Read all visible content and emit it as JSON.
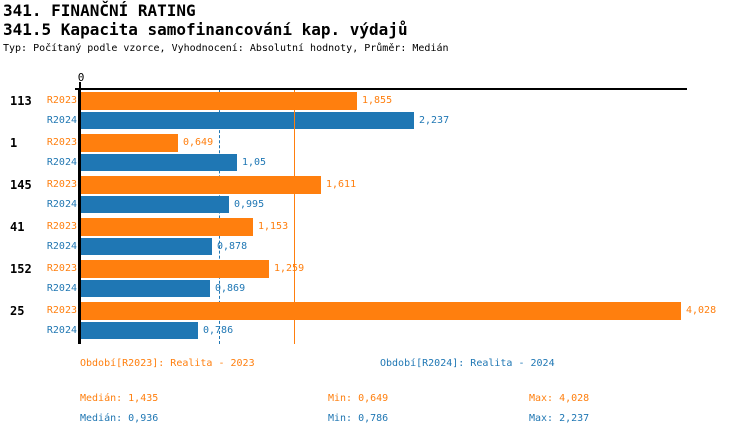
{
  "header": {
    "title": "341. FINANČNÍ RATING",
    "subtitle": "341.5 Kapacita samofinancování kap. výdajů",
    "meta": "Typ: Počítaný podle vzorce, Vyhodnocení: Absolutní hodnoty, Průměr: Medián"
  },
  "colors": {
    "r2023_orange": "#FF7F0E",
    "r2024_blue": "#1F77B4",
    "axis_black": "#000000"
  },
  "chart_data": {
    "type": "bar",
    "orientation": "horizontal",
    "title": "341.5 Kapacita samofinancování kap. výdajů",
    "x_axis": {
      "zero_label": "0",
      "xlim": [
        0,
        4.2
      ]
    },
    "categories": [
      "113",
      "1",
      "145",
      "41",
      "152",
      "25"
    ],
    "series": [
      {
        "name": "R2023",
        "color": "#FF7F0E",
        "values": [
          1.855,
          0.649,
          1.611,
          1.153,
          1.259,
          4.028
        ],
        "value_labels": [
          "1,855",
          "0,649",
          "1,611",
          "1,153",
          "1,259",
          "4,028"
        ]
      },
      {
        "name": "R2024",
        "color": "#1F77B4",
        "values": [
          2.237,
          1.05,
          0.995,
          0.878,
          0.869,
          0.786
        ],
        "value_labels": [
          "2,237",
          "1,05",
          "0,995",
          "0,878",
          "0,869",
          "0,786"
        ]
      }
    ],
    "gridlines": [
      {
        "value": 0.936,
        "color": "#1F77B4",
        "style": "dashed",
        "behind_bars": true
      },
      {
        "value": 1.435,
        "color": "#FF7F0E",
        "style": "solid",
        "behind_bars": false
      }
    ],
    "legend_position": "bottom"
  },
  "footer": {
    "legend": [
      {
        "label": "Období[R2023]: Realita - 2023",
        "color": "#FF7F0E"
      },
      {
        "label": "Období[R2024]: Realita - 2024",
        "color": "#1F77B4"
      }
    ],
    "stats": [
      {
        "color": "#FF7F0E",
        "median": "Medián: 1,435",
        "min": "Min: 0,649",
        "max": "Max: 4,028"
      },
      {
        "color": "#1F77B4",
        "median": "Medián: 0,936",
        "min": "Min: 0,786",
        "max": "Max: 2,237"
      }
    ]
  }
}
